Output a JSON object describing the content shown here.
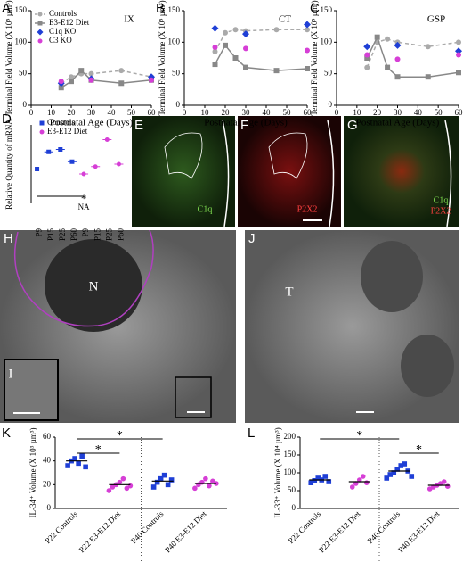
{
  "chart_data": [
    {
      "type": "line",
      "panel": "A",
      "title": "IX",
      "xlabel": "Postnatal Age (Days)",
      "ylabel": "Terminal Field Volume (X 10⁵ µm³)",
      "xlim": [
        0,
        60
      ],
      "xticks": [
        0,
        10,
        20,
        30,
        40,
        50,
        60
      ],
      "ylim": [
        0,
        150
      ],
      "yticks": [
        0,
        50,
        100,
        150
      ],
      "legend": true,
      "series": [
        {
          "name": "Controls",
          "color": "#aaaaaa",
          "marker": "circle",
          "line": "dashed",
          "x": [
            15,
            20,
            25,
            30,
            45,
            60
          ],
          "values": [
            35,
            45,
            50,
            50,
            55,
            45
          ]
        },
        {
          "name": "E3-E12 Diet",
          "color": "#888888",
          "marker": "square",
          "line": "solid",
          "x": [
            15,
            20,
            25,
            30,
            45,
            60
          ],
          "values": [
            28,
            38,
            55,
            40,
            35,
            40
          ]
        },
        {
          "name": "C1q KO",
          "color": "#1f3fd6",
          "marker": "diamond",
          "line": "none",
          "x": [
            15,
            30,
            60
          ],
          "values": [
            35,
            42,
            45
          ]
        },
        {
          "name": "C3 KO",
          "color": "#d63fd6",
          "marker": "circle",
          "line": "none",
          "x": [
            15,
            30,
            60
          ],
          "values": [
            38,
            40,
            40
          ]
        }
      ]
    },
    {
      "type": "line",
      "panel": "B",
      "title": "CT",
      "xlabel": "Postnatal Age (Days)",
      "ylabel": "Terminal Field Volume (X 10⁵ µm³)",
      "xlim": [
        0,
        60
      ],
      "xticks": [
        0,
        10,
        20,
        30,
        40,
        50,
        60
      ],
      "ylim": [
        0,
        150
      ],
      "yticks": [
        0,
        50,
        100,
        150
      ],
      "legend": false,
      "series": [
        {
          "name": "Controls",
          "color": "#aaaaaa",
          "marker": "circle",
          "line": "dashed",
          "x": [
            15,
            20,
            25,
            30,
            45,
            60
          ],
          "values": [
            85,
            115,
            120,
            118,
            120,
            120
          ]
        },
        {
          "name": "E3-E12 Diet",
          "color": "#888888",
          "marker": "square",
          "line": "solid",
          "x": [
            15,
            20,
            25,
            30,
            45,
            60
          ],
          "values": [
            65,
            95,
            75,
            60,
            55,
            58
          ]
        },
        {
          "name": "C1q KO",
          "color": "#1f3fd6",
          "marker": "diamond",
          "line": "none",
          "x": [
            15,
            30,
            60
          ],
          "values": [
            122,
            113,
            128
          ]
        },
        {
          "name": "C3 KO",
          "color": "#d63fd6",
          "marker": "circle",
          "line": "none",
          "x": [
            15,
            30,
            60
          ],
          "values": [
            92,
            90,
            87
          ]
        }
      ]
    },
    {
      "type": "line",
      "panel": "C",
      "title": "GSP",
      "xlabel": "Postnatal Age (Days)",
      "ylabel": "Terminal Field Volume (X 10⁵ µm³)",
      "xlim": [
        0,
        60
      ],
      "xticks": [
        0,
        10,
        20,
        30,
        40,
        50,
        60
      ],
      "ylim": [
        0,
        150
      ],
      "yticks": [
        0,
        50,
        100,
        150
      ],
      "legend": false,
      "series": [
        {
          "name": "Controls",
          "color": "#aaaaaa",
          "marker": "circle",
          "line": "dashed",
          "x": [
            15,
            20,
            25,
            30,
            45,
            60
          ],
          "values": [
            60,
            100,
            105,
            100,
            93,
            100
          ]
        },
        {
          "name": "E3-E12 Diet",
          "color": "#888888",
          "marker": "square",
          "line": "solid",
          "x": [
            15,
            20,
            25,
            30,
            45,
            60
          ],
          "values": [
            75,
            108,
            60,
            45,
            45,
            52
          ]
        },
        {
          "name": "C1q KO",
          "color": "#1f3fd6",
          "marker": "diamond",
          "line": "none",
          "x": [
            15,
            30,
            60
          ],
          "values": [
            93,
            95,
            86
          ]
        },
        {
          "name": "C3 KO",
          "color": "#d63fd6",
          "marker": "circle",
          "line": "none",
          "x": [
            15,
            30,
            60
          ],
          "values": [
            80,
            73,
            80
          ]
        }
      ]
    },
    {
      "type": "group",
      "panel": "D",
      "ylabel": "Relative Quantity of mRNA",
      "ylim": [
        0,
        1.6
      ],
      "annotations": [
        "*",
        "NA"
      ],
      "categories": [
        "P9",
        "P15",
        "P25",
        "P60",
        "P9",
        "P15",
        "P25",
        "P60"
      ],
      "series": [
        {
          "name": "Controls",
          "color": "#1f3fd6",
          "marker": "square",
          "values": [
            0.7,
            1.05,
            1.1,
            0.85,
            null,
            null,
            null,
            null
          ]
        },
        {
          "name": "E3-E12 Diet",
          "color": "#d63fd6",
          "marker": "circle",
          "values": [
            null,
            null,
            null,
            null,
            0.6,
            0.75,
            1.3,
            0.8
          ]
        }
      ]
    },
    {
      "type": "dot",
      "panel": "K",
      "ylabel": "IL-34⁺ Volume (X 10³ µm³)",
      "ylim": [
        0,
        60
      ],
      "yticks": [
        0,
        20,
        40,
        60
      ],
      "annotations": [
        "*",
        "*"
      ],
      "categories": [
        "P22 Controls",
        "P22 E3-E12 Diet",
        "P40 Controls",
        "P40 E3-E12 Diet"
      ],
      "colors": [
        "#1f3fd6",
        "#d63fd6",
        "#1f3fd6",
        "#d63fd6"
      ],
      "markers": [
        "square",
        "circle",
        "square",
        "circle"
      ],
      "values": [
        40,
        20,
        23,
        21
      ],
      "points": [
        [
          36,
          40,
          42,
          38,
          44,
          35
        ],
        [
          15,
          18,
          20,
          22,
          25,
          17,
          19
        ],
        [
          18,
          22,
          25,
          28,
          20,
          24
        ],
        [
          17,
          20,
          22,
          25,
          19,
          23,
          21
        ]
      ]
    },
    {
      "type": "dot",
      "panel": "L",
      "ylabel": "IL-33⁺ Volume (X 10⁴ µm³)",
      "ylim": [
        0,
        200
      ],
      "yticks": [
        0,
        50,
        100,
        150,
        200
      ],
      "annotations": [
        "*",
        "*"
      ],
      "categories": [
        "P22 Controls",
        "P22 E3-E12 Diet",
        "P40 Controls",
        "P40 E3-E12 Diet"
      ],
      "colors": [
        "#1f3fd6",
        "#d63fd6",
        "#1f3fd6",
        "#d63fd6"
      ],
      "markers": [
        "square",
        "circle",
        "square",
        "circle"
      ],
      "values": [
        80,
        75,
        105,
        65
      ],
      "points": [
        [
          72,
          78,
          85,
          80,
          90,
          75
        ],
        [
          60,
          70,
          80,
          90,
          72
        ],
        [
          85,
          95,
          100,
          110,
          120,
          125,
          105,
          90
        ],
        [
          55,
          60,
          65,
          70,
          75,
          62
        ]
      ]
    }
  ],
  "images": [
    {
      "panel": "E",
      "labels": [
        "C1q"
      ]
    },
    {
      "panel": "F",
      "labels": [
        "P2X2"
      ]
    },
    {
      "panel": "G",
      "labels": [
        "C1q",
        "P2X2"
      ]
    },
    {
      "panel": "H",
      "labels": [
        "N",
        "I"
      ]
    },
    {
      "panel": "J",
      "labels": [
        "T"
      ]
    }
  ]
}
